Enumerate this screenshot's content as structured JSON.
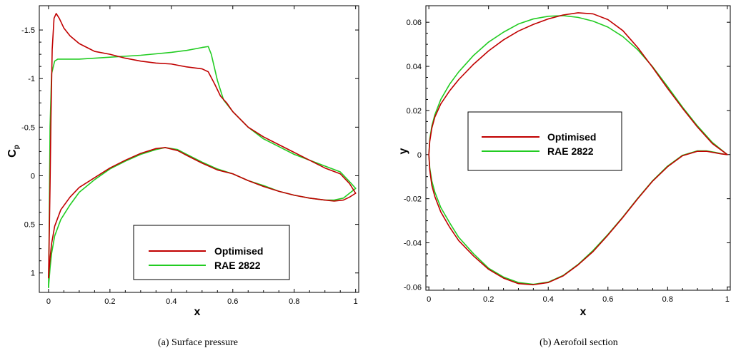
{
  "colors": {
    "optimised": "#c00000",
    "rae2822": "#22cc22"
  },
  "chart_data": [
    {
      "type": "line",
      "caption": "(a)  Surface pressure",
      "xlabel": "x",
      "ylabel_main": "C",
      "ylabel_sub": "p",
      "xlim": [
        -0.03,
        1.01
      ],
      "ylim": [
        -1.75,
        1.2
      ],
      "y_inverted": true,
      "grid": false,
      "legend_position": "bottom-right",
      "x_ticks": [
        "0",
        "0.2",
        "0.4",
        "0.6",
        "0.8",
        "1"
      ],
      "y_ticks": [
        "-1.5",
        "-1",
        "-0.5",
        "0",
        "0.5",
        "1"
      ],
      "series": [
        {
          "name": "Optimised",
          "points": [
            [
              0.0,
              1.05
            ],
            [
              0.002,
              0.7
            ],
            [
              0.005,
              0.1
            ],
            [
              0.008,
              -0.6
            ],
            [
              0.012,
              -1.3
            ],
            [
              0.018,
              -1.62
            ],
            [
              0.025,
              -1.67
            ],
            [
              0.035,
              -1.62
            ],
            [
              0.05,
              -1.52
            ],
            [
              0.07,
              -1.44
            ],
            [
              0.1,
              -1.36
            ],
            [
              0.15,
              -1.28
            ],
            [
              0.2,
              -1.25
            ],
            [
              0.25,
              -1.21
            ],
            [
              0.3,
              -1.18
            ],
            [
              0.35,
              -1.16
            ],
            [
              0.4,
              -1.15
            ],
            [
              0.45,
              -1.12
            ],
            [
              0.5,
              -1.1
            ],
            [
              0.52,
              -1.07
            ],
            [
              0.54,
              -0.95
            ],
            [
              0.56,
              -0.82
            ],
            [
              0.58,
              -0.75
            ],
            [
              0.6,
              -0.66
            ],
            [
              0.65,
              -0.5
            ],
            [
              0.7,
              -0.4
            ],
            [
              0.75,
              -0.32
            ],
            [
              0.8,
              -0.24
            ],
            [
              0.85,
              -0.16
            ],
            [
              0.9,
              -0.08
            ],
            [
              0.95,
              -0.02
            ],
            [
              0.98,
              0.08
            ],
            [
              1.0,
              0.18
            ]
          ],
          "points_lower": [
            [
              0.0,
              1.05
            ],
            [
              0.005,
              0.85
            ],
            [
              0.01,
              0.7
            ],
            [
              0.02,
              0.52
            ],
            [
              0.04,
              0.35
            ],
            [
              0.07,
              0.22
            ],
            [
              0.1,
              0.12
            ],
            [
              0.15,
              0.02
            ],
            [
              0.2,
              -0.08
            ],
            [
              0.25,
              -0.16
            ],
            [
              0.3,
              -0.23
            ],
            [
              0.35,
              -0.28
            ],
            [
              0.38,
              -0.29
            ],
            [
              0.42,
              -0.26
            ],
            [
              0.45,
              -0.21
            ],
            [
              0.5,
              -0.13
            ],
            [
              0.55,
              -0.06
            ],
            [
              0.6,
              -0.02
            ],
            [
              0.65,
              0.05
            ],
            [
              0.7,
              0.11
            ],
            [
              0.75,
              0.16
            ],
            [
              0.8,
              0.2
            ],
            [
              0.85,
              0.23
            ],
            [
              0.9,
              0.25
            ],
            [
              0.93,
              0.26
            ],
            [
              0.96,
              0.25
            ],
            [
              0.98,
              0.22
            ],
            [
              1.0,
              0.18
            ]
          ]
        },
        {
          "name": "RAE 2822",
          "points": [
            [
              0.0,
              1.15
            ],
            [
              0.002,
              0.6
            ],
            [
              0.005,
              -0.5
            ],
            [
              0.01,
              -1.05
            ],
            [
              0.02,
              -1.18
            ],
            [
              0.03,
              -1.2
            ],
            [
              0.05,
              -1.2
            ],
            [
              0.1,
              -1.2
            ],
            [
              0.2,
              -1.22
            ],
            [
              0.3,
              -1.24
            ],
            [
              0.4,
              -1.27
            ],
            [
              0.45,
              -1.29
            ],
            [
              0.5,
              -1.32
            ],
            [
              0.52,
              -1.33
            ],
            [
              0.53,
              -1.25
            ],
            [
              0.55,
              -0.98
            ],
            [
              0.57,
              -0.78
            ],
            [
              0.6,
              -0.66
            ],
            [
              0.65,
              -0.5
            ],
            [
              0.7,
              -0.38
            ],
            [
              0.75,
              -0.3
            ],
            [
              0.8,
              -0.22
            ],
            [
              0.85,
              -0.16
            ],
            [
              0.9,
              -0.1
            ],
            [
              0.95,
              -0.04
            ],
            [
              0.98,
              0.06
            ],
            [
              1.0,
              0.13
            ]
          ],
          "points_lower": [
            [
              0.0,
              1.15
            ],
            [
              0.005,
              0.95
            ],
            [
              0.01,
              0.8
            ],
            [
              0.02,
              0.62
            ],
            [
              0.04,
              0.45
            ],
            [
              0.07,
              0.3
            ],
            [
              0.1,
              0.17
            ],
            [
              0.15,
              0.04
            ],
            [
              0.2,
              -0.07
            ],
            [
              0.25,
              -0.15
            ],
            [
              0.3,
              -0.22
            ],
            [
              0.35,
              -0.27
            ],
            [
              0.38,
              -0.29
            ],
            [
              0.42,
              -0.27
            ],
            [
              0.45,
              -0.22
            ],
            [
              0.5,
              -0.14
            ],
            [
              0.55,
              -0.07
            ],
            [
              0.6,
              -0.02
            ],
            [
              0.65,
              0.05
            ],
            [
              0.7,
              0.1
            ],
            [
              0.75,
              0.16
            ],
            [
              0.8,
              0.2
            ],
            [
              0.85,
              0.23
            ],
            [
              0.9,
              0.25
            ],
            [
              0.93,
              0.25
            ],
            [
              0.96,
              0.23
            ],
            [
              0.98,
              0.18
            ],
            [
              1.0,
              0.13
            ]
          ]
        }
      ]
    },
    {
      "type": "line",
      "caption": "(b)  Aerofoil section",
      "xlabel": "x",
      "ylabel": "y",
      "xlim": [
        -0.01,
        1.01
      ],
      "ylim": [
        -0.0615,
        0.0675
      ],
      "grid": false,
      "legend_position": "center-left",
      "x_ticks": [
        "0",
        "0.2",
        "0.4",
        "0.6",
        "0.8",
        "1"
      ],
      "y_ticks": [
        "-0.06",
        "-0.04",
        "-0.02",
        "0",
        "0.02",
        "0.04",
        "0.06"
      ],
      "series": [
        {
          "name": "Optimised",
          "points": [
            [
              0.0,
              0.0
            ],
            [
              0.003,
              0.006
            ],
            [
              0.01,
              0.012
            ],
            [
              0.02,
              0.017
            ],
            [
              0.04,
              0.023
            ],
            [
              0.07,
              0.029
            ],
            [
              0.1,
              0.034
            ],
            [
              0.15,
              0.041
            ],
            [
              0.2,
              0.047
            ],
            [
              0.25,
              0.052
            ],
            [
              0.3,
              0.056
            ],
            [
              0.35,
              0.059
            ],
            [
              0.4,
              0.0615
            ],
            [
              0.45,
              0.0633
            ],
            [
              0.5,
              0.0643
            ],
            [
              0.55,
              0.0638
            ],
            [
              0.6,
              0.0612
            ],
            [
              0.65,
              0.0562
            ],
            [
              0.7,
              0.0485
            ],
            [
              0.75,
              0.0395
            ],
            [
              0.8,
              0.03
            ],
            [
              0.85,
              0.021
            ],
            [
              0.9,
              0.0125
            ],
            [
              0.95,
              0.005
            ],
            [
              1.0,
              0.0
            ]
          ],
          "points_lower": [
            [
              0.0,
              0.0
            ],
            [
              0.003,
              -0.007
            ],
            [
              0.01,
              -0.014
            ],
            [
              0.02,
              -0.019
            ],
            [
              0.04,
              -0.026
            ],
            [
              0.07,
              -0.033
            ],
            [
              0.1,
              -0.039
            ],
            [
              0.15,
              -0.046
            ],
            [
              0.2,
              -0.052
            ],
            [
              0.25,
              -0.056
            ],
            [
              0.3,
              -0.0585
            ],
            [
              0.35,
              -0.059
            ],
            [
              0.4,
              -0.058
            ],
            [
              0.45,
              -0.055
            ],
            [
              0.5,
              -0.05
            ],
            [
              0.55,
              -0.044
            ],
            [
              0.6,
              -0.0365
            ],
            [
              0.65,
              -0.0285
            ],
            [
              0.7,
              -0.02
            ],
            [
              0.75,
              -0.012
            ],
            [
              0.8,
              -0.0055
            ],
            [
              0.85,
              -0.0005
            ],
            [
              0.9,
              0.0015
            ],
            [
              0.93,
              0.0015
            ],
            [
              0.96,
              0.0008
            ],
            [
              0.98,
              0.0003
            ],
            [
              1.0,
              0.0
            ]
          ]
        },
        {
          "name": "RAE 2822",
          "points": [
            [
              0.0,
              0.0
            ],
            [
              0.003,
              0.007
            ],
            [
              0.01,
              0.013
            ],
            [
              0.02,
              0.018
            ],
            [
              0.04,
              0.025
            ],
            [
              0.07,
              0.032
            ],
            [
              0.1,
              0.0375
            ],
            [
              0.15,
              0.045
            ],
            [
              0.2,
              0.051
            ],
            [
              0.25,
              0.0555
            ],
            [
              0.3,
              0.0592
            ],
            [
              0.35,
              0.0615
            ],
            [
              0.4,
              0.0627
            ],
            [
              0.45,
              0.063
            ],
            [
              0.5,
              0.0622
            ],
            [
              0.55,
              0.0605
            ],
            [
              0.6,
              0.0578
            ],
            [
              0.65,
              0.0535
            ],
            [
              0.7,
              0.0475
            ],
            [
              0.75,
              0.0398
            ],
            [
              0.8,
              0.0308
            ],
            [
              0.85,
              0.0215
            ],
            [
              0.9,
              0.013
            ],
            [
              0.95,
              0.0055
            ],
            [
              1.0,
              0.0
            ]
          ],
          "points_lower": [
            [
              0.0,
              0.0
            ],
            [
              0.003,
              -0.006
            ],
            [
              0.01,
              -0.012
            ],
            [
              0.02,
              -0.017
            ],
            [
              0.04,
              -0.024
            ],
            [
              0.07,
              -0.031
            ],
            [
              0.1,
              -0.0375
            ],
            [
              0.15,
              -0.045
            ],
            [
              0.2,
              -0.0515
            ],
            [
              0.25,
              -0.0555
            ],
            [
              0.3,
              -0.058
            ],
            [
              0.35,
              -0.0588
            ],
            [
              0.4,
              -0.0578
            ],
            [
              0.45,
              -0.0548
            ],
            [
              0.5,
              -0.0498
            ],
            [
              0.55,
              -0.0435
            ],
            [
              0.6,
              -0.0362
            ],
            [
              0.65,
              -0.0283
            ],
            [
              0.7,
              -0.0198
            ],
            [
              0.75,
              -0.0118
            ],
            [
              0.8,
              -0.0052
            ],
            [
              0.85,
              -0.0003
            ],
            [
              0.9,
              0.0017
            ],
            [
              0.93,
              0.0017
            ],
            [
              0.96,
              0.001
            ],
            [
              0.98,
              0.0004
            ],
            [
              1.0,
              0.0
            ]
          ]
        }
      ]
    }
  ]
}
